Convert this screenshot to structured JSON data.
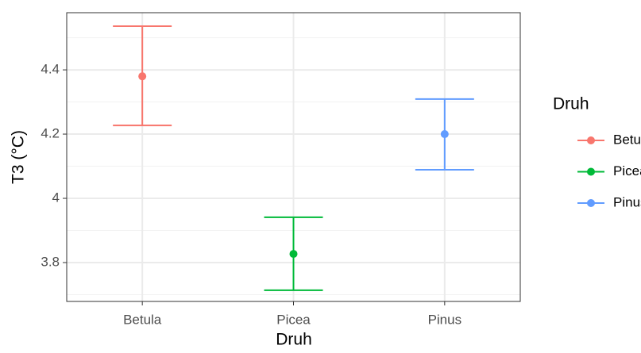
{
  "chart_data": {
    "type": "errorbar",
    "x_label": "Druh",
    "y_label": "T3 (°C)",
    "categories": [
      "Betula",
      "Picea",
      "Pinus"
    ],
    "values": [
      4.38,
      3.827,
      4.2
    ],
    "lower": [
      4.227,
      3.714,
      4.089
    ],
    "upper": [
      4.536,
      3.941,
      4.309
    ],
    "colors": [
      "#F8766D",
      "#00BA38",
      "#619CFF"
    ],
    "ylim": [
      3.679,
      4.578
    ],
    "yticks": [
      3.8,
      4.0,
      4.2,
      4.4
    ],
    "minor_yticks": [
      3.7,
      3.9,
      4.1,
      4.3,
      4.5
    ],
    "grid": true,
    "legend": {
      "title": "Druh",
      "position": "right"
    }
  }
}
